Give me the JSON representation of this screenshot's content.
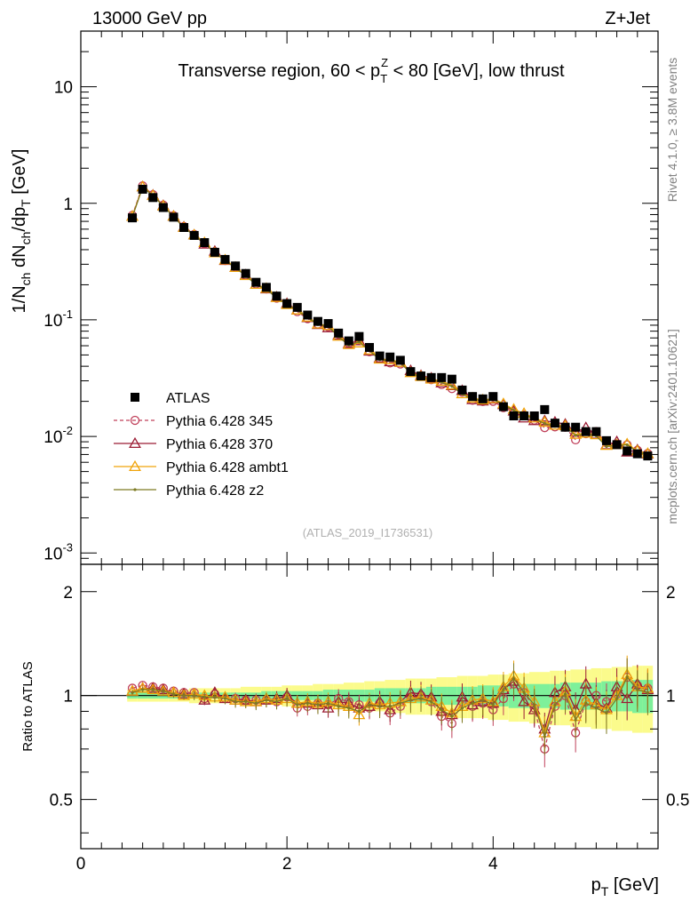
{
  "header": {
    "energy_label": "13000 GeV pp",
    "process_label": "Z+Jet",
    "plot_title_before": "Transverse region, 60 < p",
    "plot_title_sup": "Z",
    "plot_title_sub": "T",
    "plot_title_after": " < 80 [GeV], low thrust",
    "side_label_top": "Rivet 4.1.0, ≥ 3.8M events",
    "side_label_bottom": "mcplots.cern.ch [arXiv:2401.10621]",
    "watermark": "(ATLAS_2019_I1736531)"
  },
  "axes": {
    "ylabel_main": "1/N_ch dN_ch/dp_T [GeV]",
    "ylabel_ratio": "Ratio to ATLAS",
    "xlabel": "p_T [GeV]",
    "xlim": [
      0,
      5.6
    ],
    "ylim_main": [
      0.0008,
      30
    ],
    "ylim_ratio": [
      0.36,
      2.4
    ],
    "x_ticks": [
      "0",
      "2",
      "4"
    ],
    "y_ticks_main": [
      "10^-3",
      "10^-2",
      "10^-1",
      "1",
      "10"
    ],
    "y_ticks_ratio": [
      "0.5",
      "1",
      "2"
    ]
  },
  "chart_data": {
    "type": "scatter",
    "x": [
      0.5,
      0.6,
      0.7,
      0.8,
      0.9,
      1.0,
      1.1,
      1.2,
      1.3,
      1.4,
      1.5,
      1.6,
      1.7,
      1.8,
      1.9,
      2.0,
      2.1,
      2.2,
      2.3,
      2.4,
      2.5,
      2.6,
      2.7,
      2.8,
      2.9,
      3.0,
      3.1,
      3.2,
      3.3,
      3.4,
      3.5,
      3.6,
      3.7,
      3.8,
      3.9,
      4.0,
      4.1,
      4.2,
      4.3,
      4.4,
      4.5,
      4.6,
      4.7,
      4.8,
      4.9,
      5.0,
      5.1,
      5.2,
      5.3,
      5.4,
      5.5
    ],
    "reference": {
      "name": "ATLAS",
      "values": [
        0.75,
        1.32,
        1.12,
        0.92,
        0.76,
        0.62,
        0.53,
        0.46,
        0.38,
        0.33,
        0.29,
        0.25,
        0.21,
        0.19,
        0.16,
        0.138,
        0.128,
        0.11,
        0.097,
        0.093,
        0.077,
        0.066,
        0.072,
        0.058,
        0.049,
        0.048,
        0.045,
        0.036,
        0.033,
        0.032,
        0.032,
        0.031,
        0.025,
        0.022,
        0.021,
        0.022,
        0.018,
        0.015,
        0.015,
        0.015,
        0.017,
        0.013,
        0.012,
        0.012,
        0.011,
        0.011,
        0.0092,
        0.0085,
        0.0075,
        0.0071,
        0.0068
      ]
    },
    "series": [
      {
        "name": "Pythia 6.428 345",
        "color": "#c0405a",
        "marker": "circle-open",
        "dash": "dashed",
        "ratio": [
          1.05,
          1.07,
          1.06,
          1.05,
          1.03,
          1.02,
          1.02,
          0.98,
          1.01,
          0.98,
          0.98,
          0.97,
          0.97,
          0.97,
          0.96,
          0.99,
          0.92,
          0.93,
          0.95,
          0.94,
          0.98,
          0.96,
          0.94,
          0.92,
          0.95,
          0.89,
          0.93,
          0.99,
          1.0,
          0.96,
          0.87,
          0.83,
          0.96,
          0.93,
          0.95,
          0.91,
          0.98,
          1.08,
          1.02,
          0.92,
          0.7,
          0.93,
          1.0,
          0.78,
          0.96,
          1.0,
          0.96,
          1.01,
          1.13,
          1.07,
          1.05
        ]
      },
      {
        "name": "Pythia 6.428 370",
        "color": "#9b1c34",
        "marker": "triangle-open",
        "dash": "solid",
        "ratio": [
          1.03,
          1.05,
          1.05,
          1.04,
          1.02,
          1.01,
          1.01,
          0.97,
          1.02,
          0.98,
          0.97,
          0.97,
          0.96,
          0.97,
          0.98,
          1.0,
          0.95,
          0.95,
          0.94,
          0.92,
          0.96,
          0.95,
          0.92,
          0.93,
          0.96,
          0.91,
          0.96,
          1.02,
          1.01,
          0.99,
          0.9,
          0.88,
          0.99,
          0.94,
          0.96,
          0.95,
          1.04,
          1.1,
          0.96,
          0.91,
          0.8,
          1.02,
          1.06,
          0.91,
          1.08,
          0.95,
          0.92,
          1.06,
          0.98,
          1.08,
          1.04
        ]
      },
      {
        "name": "Pythia 6.428 ambt1",
        "color": "#f0a30a",
        "marker": "triangle-open",
        "dash": "solid",
        "ratio": [
          1.03,
          1.05,
          1.04,
          1.03,
          1.02,
          1.0,
          1.01,
          1.0,
          0.99,
          0.99,
          0.97,
          0.96,
          0.96,
          0.98,
          0.97,
          0.98,
          0.95,
          0.96,
          0.95,
          0.96,
          0.94,
          0.93,
          0.88,
          0.95,
          0.94,
          0.95,
          0.96,
          0.98,
          0.99,
          0.97,
          0.93,
          0.89,
          0.93,
          0.97,
          0.98,
          0.96,
          1.06,
          1.14,
          1.05,
          0.96,
          0.78,
          0.96,
          1.03,
          0.87,
          0.97,
          0.94,
          0.91,
          1.0,
          1.15,
          1.06,
          1.05
        ]
      },
      {
        "name": "Pythia 6.428 z2",
        "color": "#7d7a23",
        "marker": "dot",
        "dash": "solid",
        "ratio": [
          1.02,
          1.04,
          1.04,
          1.03,
          1.01,
          1.0,
          1.0,
          0.99,
          0.99,
          0.98,
          0.96,
          0.96,
          0.95,
          0.97,
          0.96,
          0.98,
          0.94,
          0.95,
          0.94,
          0.95,
          0.93,
          0.92,
          0.9,
          0.94,
          0.93,
          0.93,
          0.95,
          0.97,
          0.98,
          0.96,
          0.91,
          0.87,
          0.92,
          0.95,
          0.97,
          0.94,
          1.04,
          1.12,
          1.02,
          0.94,
          0.76,
          0.94,
          1.01,
          0.85,
          0.95,
          0.92,
          0.89,
          0.98,
          1.13,
          1.04,
          1.02
        ]
      }
    ],
    "uncertainty_bands": {
      "stat_half_width": [
        0.02,
        0.02,
        0.02,
        0.02,
        0.02,
        0.02,
        0.02,
        0.02,
        0.02,
        0.02,
        0.02,
        0.02,
        0.02,
        0.03,
        0.03,
        0.03,
        0.03,
        0.03,
        0.03,
        0.04,
        0.04,
        0.04,
        0.04,
        0.04,
        0.05,
        0.05,
        0.05,
        0.05,
        0.05,
        0.06,
        0.06,
        0.06,
        0.06,
        0.06,
        0.07,
        0.07,
        0.07,
        0.08,
        0.08,
        0.08,
        0.08,
        0.08,
        0.09,
        0.09,
        0.09,
        0.09,
        0.1,
        0.1,
        0.1,
        0.11,
        0.11
      ],
      "total_half_width": [
        0.04,
        0.04,
        0.04,
        0.04,
        0.04,
        0.04,
        0.05,
        0.05,
        0.05,
        0.05,
        0.05,
        0.06,
        0.06,
        0.06,
        0.06,
        0.07,
        0.07,
        0.07,
        0.08,
        0.08,
        0.08,
        0.09,
        0.09,
        0.1,
        0.1,
        0.11,
        0.11,
        0.12,
        0.12,
        0.12,
        0.13,
        0.13,
        0.14,
        0.14,
        0.14,
        0.15,
        0.15,
        0.16,
        0.16,
        0.17,
        0.17,
        0.18,
        0.18,
        0.19,
        0.19,
        0.2,
        0.2,
        0.21,
        0.21,
        0.22,
        0.22
      ],
      "stat_color": "#7ef09a",
      "total_color": "#fbfb8c"
    },
    "legend": [
      "ATLAS",
      "Pythia 6.428 345",
      "Pythia 6.428 370",
      "Pythia 6.428 ambt1",
      "Pythia 6.428 z2"
    ],
    "legend_position": "left",
    "yscale_main": "log"
  }
}
